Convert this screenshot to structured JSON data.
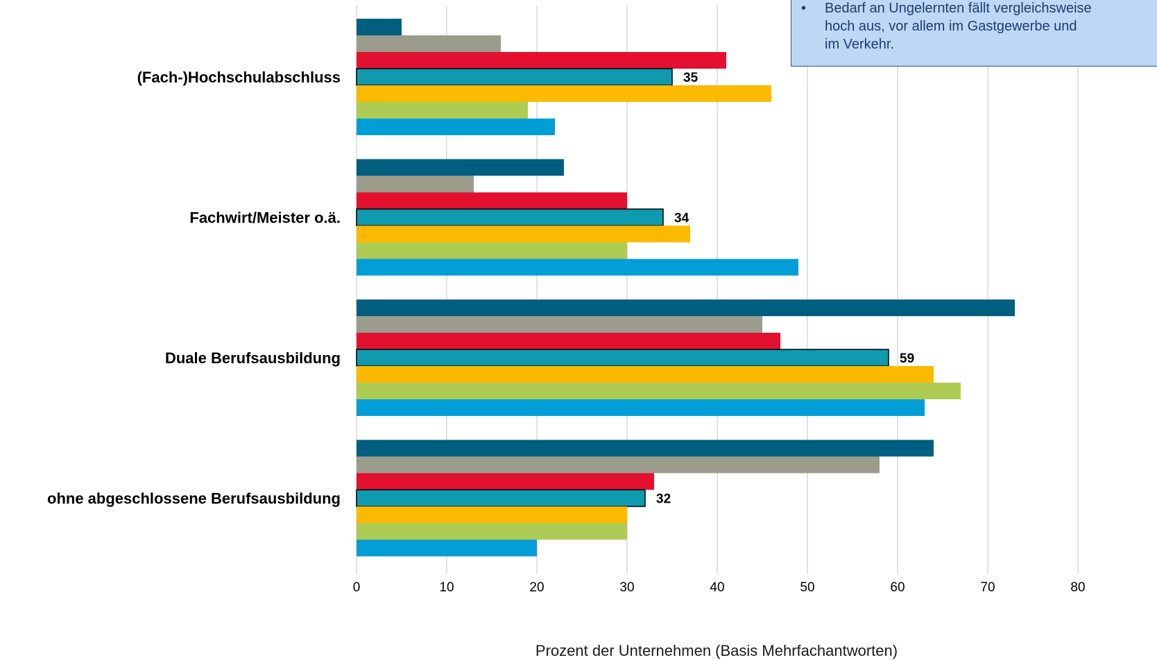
{
  "chart_data": {
    "type": "bar",
    "orientation": "horizontal",
    "categories": [
      "(Fach-)Hochschulabschluss",
      "Fachwirt/Meister o.ä.",
      "Duale Berufsausbildung",
      "ohne abgeschlossene Berufsausbildung"
    ],
    "series": [
      {
        "color": "#005f7f",
        "values": [
          5,
          23,
          73,
          64
        ]
      },
      {
        "color": "#9c9c8c",
        "values": [
          16,
          13,
          45,
          58
        ]
      },
      {
        "color": "#e3102f",
        "values": [
          41,
          30,
          47,
          33
        ]
      },
      {
        "color": "#0f9aaf",
        "values": [
          35,
          34,
          59,
          32
        ],
        "outlined": true,
        "labeled": true
      },
      {
        "color": "#fbb900",
        "values": [
          46,
          37,
          64,
          30
        ]
      },
      {
        "color": "#aecb54",
        "values": [
          19,
          30,
          67,
          30
        ]
      },
      {
        "color": "#009ed6",
        "values": [
          22,
          49,
          63,
          20
        ]
      }
    ],
    "data_labels": [
      "35",
      "34",
      "59",
      "32"
    ],
    "xlabel": "Prozent der Unternehmen (Basis Mehrfachantworten)",
    "xlim": [
      0,
      80
    ],
    "xticks": [
      "0",
      "10",
      "20",
      "30",
      "40",
      "50",
      "60",
      "70",
      "80"
    ],
    "grid": true,
    "legend": "none"
  },
  "note": {
    "bullet": "•",
    "text": "Bedarf an Ungelernten fällt vergleichsweise\nhoch aus, vor allem im Gastgewerbe und\nim Verkehr."
  }
}
